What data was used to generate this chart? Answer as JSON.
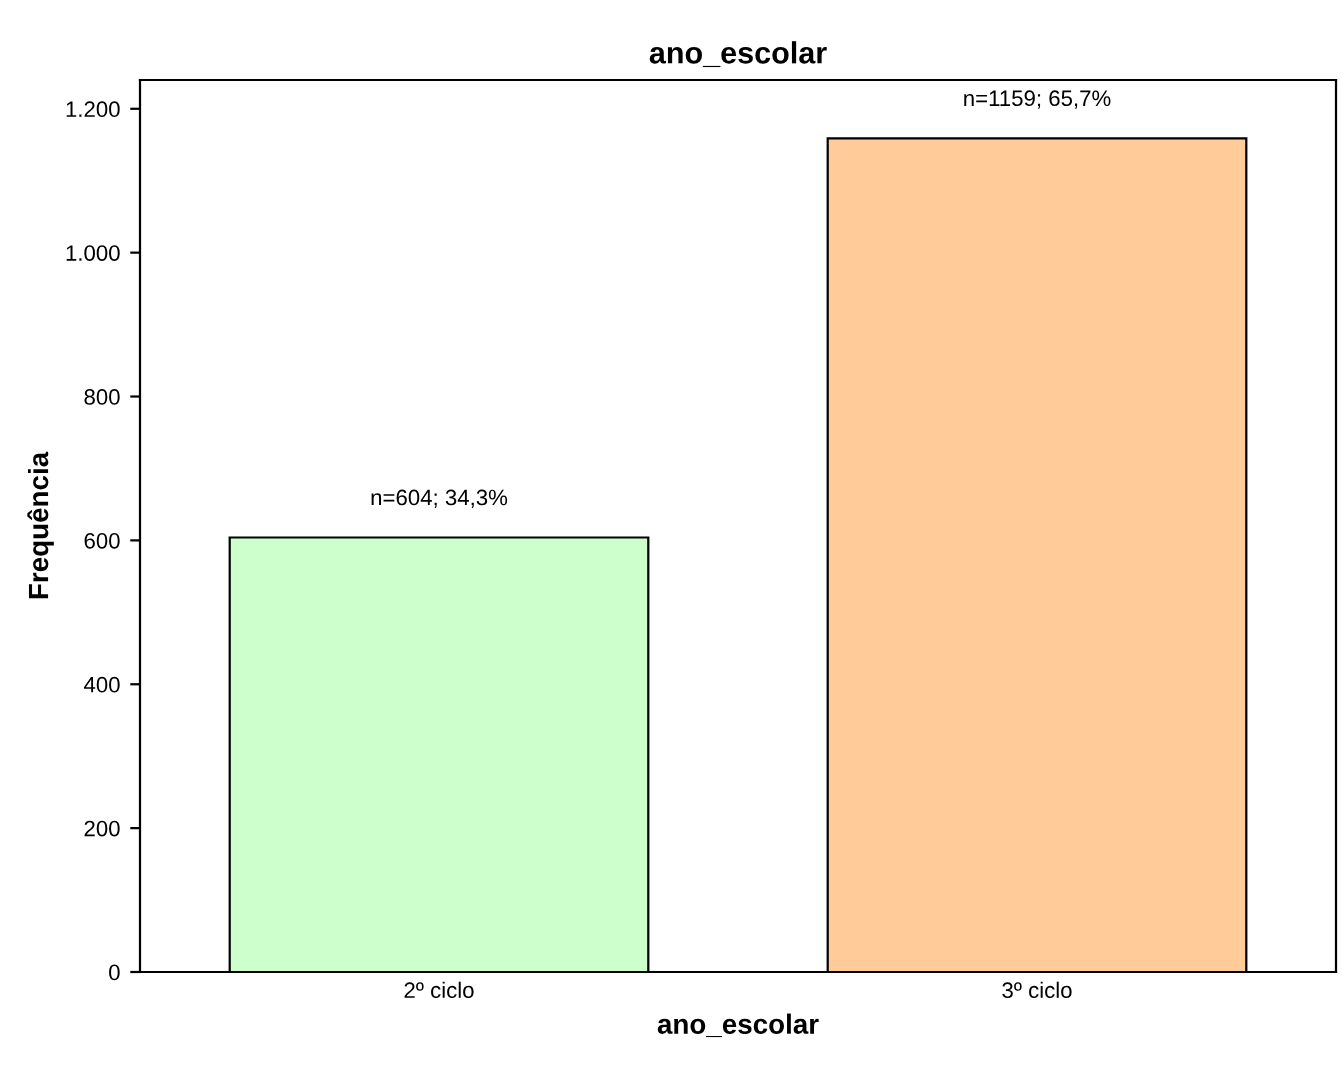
{
  "chart_data": {
    "type": "bar",
    "title": "ano_escolar",
    "xlabel": "ano_escolar",
    "ylabel": "Frequência",
    "categories": [
      "2º ciclo",
      "3º ciclo"
    ],
    "series": [
      {
        "colors": [
          "#ccffcc",
          "#ffcc99"
        ],
        "values": [
          604,
          1159
        ]
      }
    ],
    "value_labels": [
      "n=604; 34,3%",
      "n=1159; 65,7%"
    ],
    "ylim": [
      0,
      1240
    ],
    "yticks": [
      0,
      200,
      400,
      600,
      800,
      {
        "value": 1000,
        "label": "1.000"
      },
      {
        "value": 1200,
        "label": "1.200"
      }
    ],
    "grid": false
  }
}
